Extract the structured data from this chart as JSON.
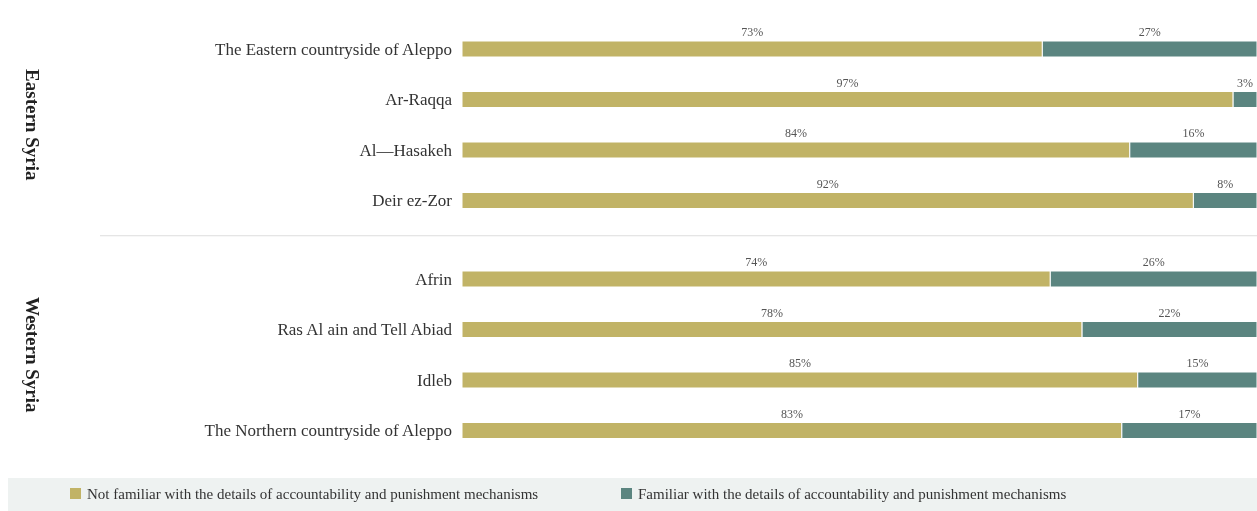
{
  "chart_data": {
    "type": "bar",
    "orientation": "horizontal",
    "stacked": true,
    "legend": "bottom",
    "annotations": [
      "Eastern Syria",
      "Western Syria"
    ],
    "categories": [
      "The Eastern countryside of Aleppo",
      "Ar-Raqqa",
      "Al—Hasakeh",
      "Deir ez-Zor",
      "Afrin",
      "Ras Al ain and Tell Abiad",
      "Idleb",
      "The Northern countryside of Aleppo"
    ],
    "series": [
      {
        "name": "Not familiar with the details of accountability and punishment mechanisms",
        "color": "#c1b366",
        "values": [
          73,
          97,
          84,
          92,
          74,
          78,
          85,
          83
        ],
        "value_labels": [
          "73%",
          "97%",
          "84%",
          "92%",
          "74%",
          "78%",
          "85%",
          "83%"
        ]
      },
      {
        "name": "Familiar with the details of accountability and punishment mechanisms",
        "color": "#5b8580",
        "values": [
          27,
          3,
          16,
          8,
          26,
          22,
          15,
          17
        ],
        "value_labels": [
          "27%",
          "3%",
          "16%",
          "8%",
          "26%",
          "22%",
          "15%",
          "17%"
        ]
      }
    ]
  }
}
